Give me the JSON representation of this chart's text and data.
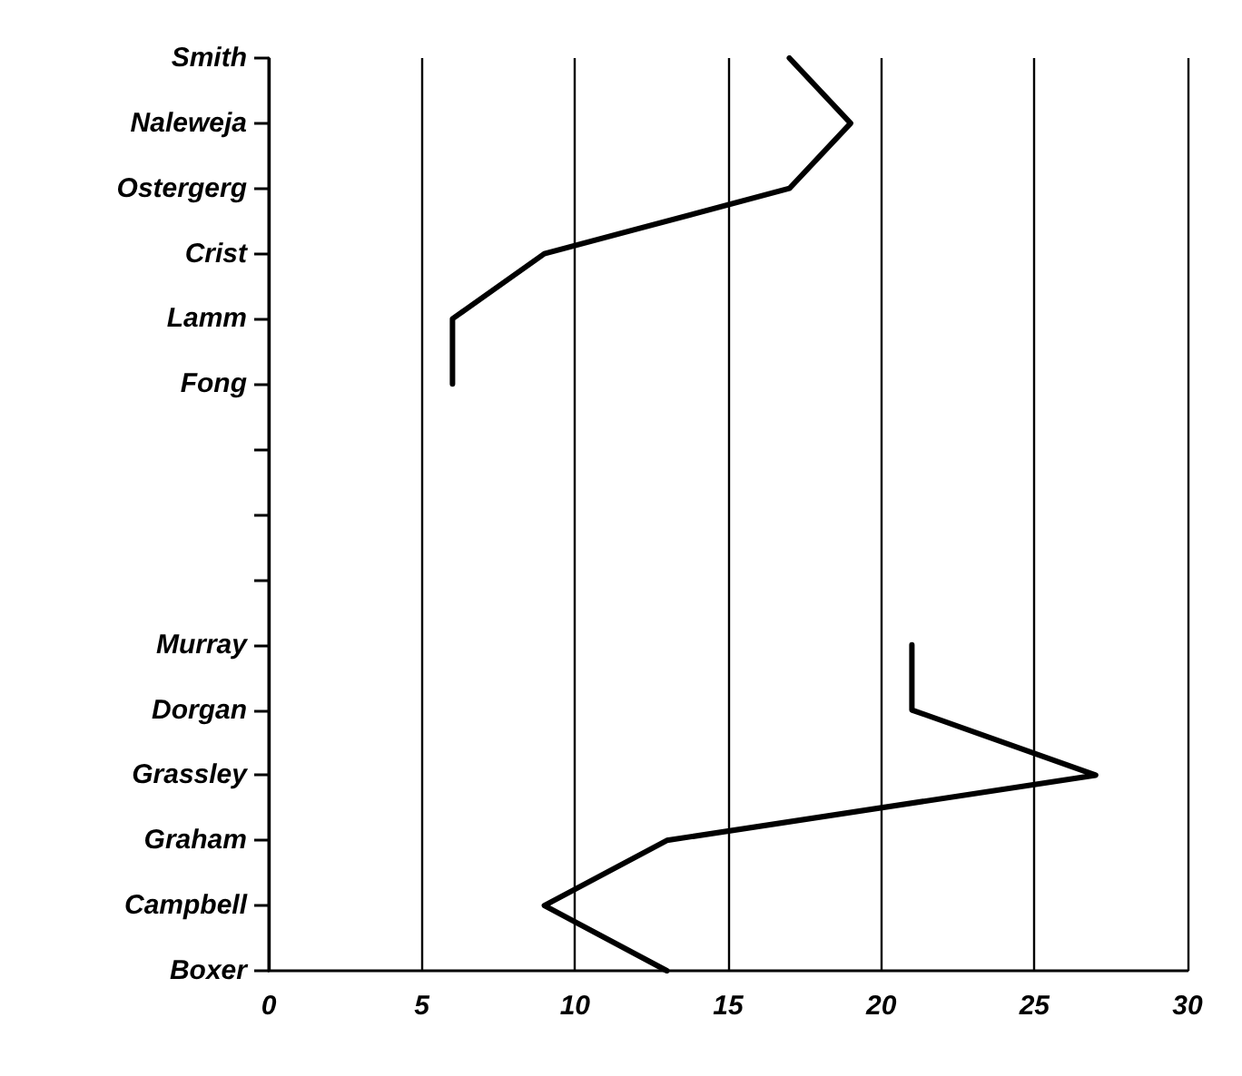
{
  "chart_data": {
    "type": "line",
    "orientation": "horizontal",
    "categories": [
      "Smith",
      "Naleweja",
      "Ostergerg",
      "Crist",
      "Lamm",
      "Fong",
      null,
      null,
      null,
      "Murray",
      "Dorgan",
      "Grassley",
      "Graham",
      "Campbell",
      "Boxer"
    ],
    "values": [
      17,
      19,
      17,
      9,
      6,
      6,
      null,
      null,
      null,
      21,
      21,
      27,
      13,
      9,
      13
    ],
    "color": "#000000",
    "xlim": [
      0,
      30
    ],
    "xticks": [
      0,
      5,
      10,
      15,
      20,
      25,
      30
    ],
    "grid": "x",
    "marker": "none",
    "line_style": "solid"
  }
}
